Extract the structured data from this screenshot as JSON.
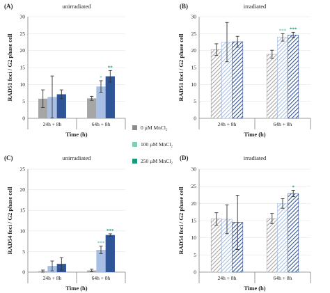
{
  "chart_data": [
    {
      "type": "bar",
      "panel": "(A)",
      "title": "unirradiated",
      "xlabel": "Time (h)",
      "ylabel": "RAD51 foci / G2 phase cell",
      "ylim": [
        0,
        30
      ],
      "yticks": [
        "0",
        "5",
        "10",
        "15",
        "20",
        "25",
        "30"
      ],
      "grid": true,
      "hatched": false,
      "categories": [
        "24h + 8h",
        "64h + 8h"
      ],
      "series": [
        {
          "name": "0 µM MnCl₂",
          "values": [
            5.8,
            5.9
          ],
          "errors": [
            2.6,
            0.6
          ],
          "color": "#a6a6a6",
          "sig": [
            "",
            ""
          ]
        },
        {
          "name": "100 µM MnCl₂",
          "values": [
            6.3,
            9.4
          ],
          "errors": [
            6.2,
            1.7
          ],
          "color": "#a8bfe3",
          "sig": [
            "",
            "*"
          ]
        },
        {
          "name": "250 µM MnCl₂",
          "values": [
            7.1,
            12.4
          ],
          "errors": [
            1.3,
            1.7
          ],
          "color": "#2f5597",
          "sig": [
            "",
            "**"
          ]
        }
      ],
      "sig_colors": [
        "#7fcdbb",
        "#1a9a7a"
      ]
    },
    {
      "type": "bar",
      "panel": "(B)",
      "title": "irradiated",
      "xlabel": "Time (h)",
      "ylabel": "RAD51 foci / G2 phase cell",
      "ylim": [
        0,
        30
      ],
      "yticks": [
        "0",
        "5",
        "10",
        "15",
        "20",
        "25",
        "30"
      ],
      "grid": true,
      "hatched": true,
      "categories": [
        "24h + 8h",
        "64h + 8h"
      ],
      "series": [
        {
          "name": "0 µM MnCl₂",
          "values": [
            20.3,
            18.9
          ],
          "errors": [
            1.7,
            1.2
          ],
          "color": "#a6a6a6",
          "sig": [
            "",
            ""
          ]
        },
        {
          "name": "100 µM MnCl₂",
          "values": [
            22.5,
            23.9
          ],
          "errors": [
            5.8,
            1.1
          ],
          "color": "#a8bfe3",
          "sig": [
            "",
            "***"
          ]
        },
        {
          "name": "250 µM MnCl₂",
          "values": [
            22.6,
            24.6
          ],
          "errors": [
            1.6,
            0.8
          ],
          "color": "#2f5597",
          "sig": [
            "",
            "***"
          ]
        }
      ],
      "sig_colors": [
        "#7fcdbb",
        "#1a9a7a"
      ]
    },
    {
      "type": "bar",
      "panel": "(C)",
      "title": "unirradiated",
      "xlabel": "Time (h)",
      "ylabel": "RAD54 foci / G2 phase cell",
      "ylim": [
        0,
        25
      ],
      "yticks": [
        "0",
        "5",
        "10",
        "15",
        "20",
        "25"
      ],
      "grid": true,
      "hatched": false,
      "categories": [
        "24h + 8h",
        "64h + 8h"
      ],
      "series": [
        {
          "name": "0 µM MnCl₂",
          "values": [
            0.2,
            0.4
          ],
          "errors": [
            0.3,
            0.3
          ],
          "color": "#a6a6a6",
          "sig": [
            "",
            ""
          ]
        },
        {
          "name": "100 µM MnCl₂",
          "values": [
            1.5,
            5.4
          ],
          "errors": [
            1.2,
            0.9
          ],
          "color": "#a8bfe3",
          "sig": [
            "",
            "***"
          ]
        },
        {
          "name": "250 µM MnCl₂",
          "values": [
            2.0,
            9.0
          ],
          "errors": [
            1.5,
            0.3
          ],
          "color": "#2f5597",
          "sig": [
            "",
            "***"
          ]
        }
      ],
      "sig_colors": [
        "#7fcdbb",
        "#1a9a7a"
      ]
    },
    {
      "type": "bar",
      "panel": "(D)",
      "title": "irradiated",
      "xlabel": "Time (h)",
      "ylabel": "RAD54 foci / G2 phase cell",
      "ylim": [
        0,
        30
      ],
      "yticks": [
        "0",
        "5",
        "10",
        "15",
        "20",
        "25",
        "30"
      ],
      "grid": true,
      "hatched": true,
      "categories": [
        "24h + 8h",
        "64h + 8h"
      ],
      "series": [
        {
          "name": "0 µM MnCl₂",
          "values": [
            15.5,
            15.6
          ],
          "errors": [
            1.8,
            1.5
          ],
          "color": "#a6a6a6",
          "sig": [
            "",
            ""
          ]
        },
        {
          "name": "100 µM MnCl₂",
          "values": [
            15.4,
            20.0
          ],
          "errors": [
            4.2,
            1.4
          ],
          "color": "#a8bfe3",
          "sig": [
            "",
            ""
          ]
        },
        {
          "name": "250 µM MnCl₂",
          "values": [
            14.5,
            22.9
          ],
          "errors": [
            7.9,
            0.9
          ],
          "color": "#2f5597",
          "sig": [
            "",
            "*"
          ]
        }
      ],
      "sig_colors": [
        "#7fcdbb",
        "#1a9a7a"
      ]
    }
  ],
  "legend": {
    "placement": "center",
    "entries": [
      {
        "label": "0 µM MnCl₂",
        "color": "#8c8c8c"
      },
      {
        "label": "100 µM MnCl₂",
        "color": "#7fcdbb"
      },
      {
        "label": "250 µM MnCl₂",
        "color": "#1a9a7a"
      }
    ]
  }
}
